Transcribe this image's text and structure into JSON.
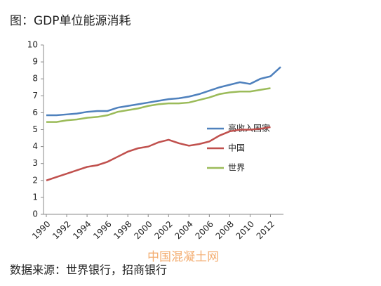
{
  "chart_data": {
    "type": "line",
    "title": "图：GDP单位能源消耗",
    "source": "数据来源：世界银行，招商银行",
    "watermark": "中国混凝土网",
    "x": [
      1990,
      1991,
      1992,
      1993,
      1994,
      1995,
      1996,
      1997,
      1998,
      1999,
      2000,
      2001,
      2002,
      2003,
      2004,
      2005,
      2006,
      2007,
      2008,
      2009,
      2010,
      2011,
      2012,
      2013
    ],
    "xlim": [
      1990,
      2013
    ],
    "xticks": [
      1990,
      1992,
      1994,
      1996,
      1998,
      2000,
      2002,
      2004,
      2006,
      2008,
      2010,
      2012
    ],
    "ylim": [
      0,
      10
    ],
    "yticks": [
      0,
      1,
      2,
      3,
      4,
      5,
      6,
      7,
      8,
      9,
      10
    ],
    "grid": false,
    "legend": "right",
    "series": [
      {
        "name": "高收入国家",
        "color": "#4f81bd",
        "values": [
          5.85,
          5.85,
          5.9,
          5.95,
          6.05,
          6.1,
          6.1,
          6.3,
          6.4,
          6.5,
          6.6,
          6.7,
          6.8,
          6.85,
          6.95,
          7.1,
          7.3,
          7.5,
          7.65,
          7.8,
          7.7,
          8.0,
          8.15,
          8.7
        ]
      },
      {
        "name": "中国",
        "color": "#c0504d",
        "values": [
          2.0,
          2.2,
          2.4,
          2.6,
          2.8,
          2.9,
          3.1,
          3.4,
          3.7,
          3.9,
          4.0,
          4.25,
          4.4,
          4.2,
          4.05,
          4.15,
          4.3,
          4.65,
          4.9,
          5.0,
          5.0,
          5.05,
          5.15,
          null
        ]
      },
      {
        "name": "世界",
        "color": "#9bbb59",
        "values": [
          5.45,
          5.45,
          5.55,
          5.6,
          5.7,
          5.75,
          5.85,
          6.05,
          6.15,
          6.25,
          6.4,
          6.5,
          6.55,
          6.55,
          6.6,
          6.75,
          6.9,
          7.1,
          7.2,
          7.25,
          7.25,
          7.35,
          7.45,
          null
        ]
      }
    ]
  }
}
